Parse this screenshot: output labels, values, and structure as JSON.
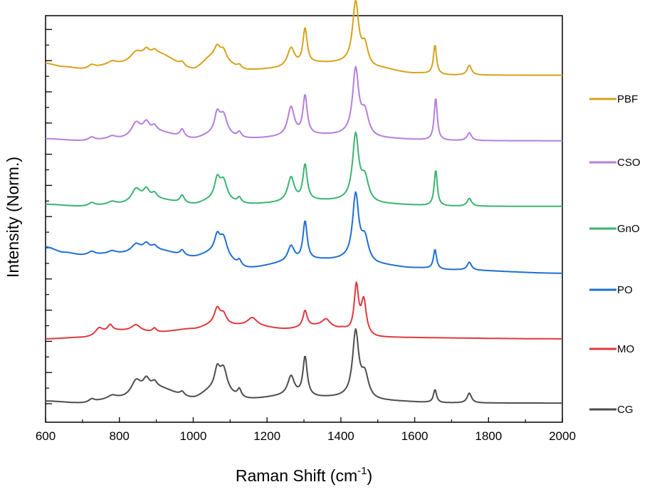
{
  "chart_data": {
    "type": "line",
    "title": "",
    "xlabel": "Raman Shift (cm",
    "xlabel_superscript": "-1",
    "xlabel_suffix": ")",
    "ylabel": "Intensity (Norm.)",
    "xlim": [
      600,
      2000
    ],
    "ylim": [
      0,
      6.2
    ],
    "x_ticks": [
      600,
      800,
      1000,
      1200,
      1400,
      1600,
      1800,
      2000
    ],
    "x_tick_labels": [
      "600",
      "800",
      "1000",
      "1200",
      "1400",
      "1600",
      "1800",
      "2000"
    ],
    "y_tick_labels_shown": false,
    "legend_position": "right",
    "series": [
      {
        "name": "PBF",
        "color": "#D6A21C",
        "offset": 5.0,
        "baseline": [
          [
            600,
            0.2
          ],
          [
            650,
            0.15
          ],
          [
            700,
            0.12
          ],
          [
            800,
            0.2
          ],
          [
            900,
            0.35
          ],
          [
            1000,
            0.12
          ],
          [
            1050,
            0.28
          ],
          [
            1150,
            0.1
          ],
          [
            1250,
            0.12
          ],
          [
            1350,
            0.2
          ],
          [
            1400,
            0.2
          ],
          [
            1500,
            0.12
          ],
          [
            1600,
            0.05
          ],
          [
            1700,
            0.02
          ],
          [
            2000,
            0.02
          ]
        ],
        "peaks": [
          [
            725,
            0.05,
            10
          ],
          [
            780,
            0.04,
            12
          ],
          [
            845,
            0.12,
            18
          ],
          [
            873,
            0.08,
            8
          ],
          [
            895,
            0.05,
            8
          ],
          [
            970,
            0.06,
            7
          ],
          [
            1065,
            0.18,
            10
          ],
          [
            1082,
            0.15,
            10
          ],
          [
            1125,
            0.05,
            6
          ],
          [
            1265,
            0.3,
            12
          ],
          [
            1303,
            0.55,
            7
          ],
          [
            1440,
            0.95,
            10
          ],
          [
            1465,
            0.3,
            10
          ],
          [
            1655,
            0.45,
            5
          ],
          [
            1748,
            0.15,
            7
          ]
        ]
      },
      {
        "name": "CSO",
        "color": "#B57EDC",
        "offset": 4.0,
        "baseline": [
          [
            600,
            0.05
          ],
          [
            700,
            0.02
          ],
          [
            800,
            0.05
          ],
          [
            900,
            0.15
          ],
          [
            1000,
            0.05
          ],
          [
            1050,
            0.1
          ],
          [
            1150,
            0.05
          ],
          [
            1250,
            0.07
          ],
          [
            1350,
            0.1
          ],
          [
            1400,
            0.1
          ],
          [
            1500,
            0.05
          ],
          [
            1700,
            0.02
          ],
          [
            2000,
            0.02
          ]
        ],
        "peaks": [
          [
            725,
            0.05,
            10
          ],
          [
            780,
            0.04,
            12
          ],
          [
            845,
            0.2,
            15
          ],
          [
            873,
            0.15,
            10
          ],
          [
            895,
            0.08,
            8
          ],
          [
            970,
            0.12,
            7
          ],
          [
            1065,
            0.3,
            9
          ],
          [
            1082,
            0.3,
            12
          ],
          [
            1125,
            0.08,
            6
          ],
          [
            1265,
            0.45,
            11
          ],
          [
            1303,
            0.6,
            7
          ],
          [
            1440,
            1.0,
            10
          ],
          [
            1465,
            0.35,
            12
          ],
          [
            1657,
            0.65,
            5
          ],
          [
            1748,
            0.12,
            7
          ]
        ]
      },
      {
        "name": "GnO",
        "color": "#3CB371",
        "offset": 3.0,
        "baseline": [
          [
            600,
            0.05
          ],
          [
            700,
            0.02
          ],
          [
            800,
            0.05
          ],
          [
            900,
            0.12
          ],
          [
            1000,
            0.05
          ],
          [
            1050,
            0.1
          ],
          [
            1150,
            0.05
          ],
          [
            1250,
            0.07
          ],
          [
            1350,
            0.1
          ],
          [
            1400,
            0.1
          ],
          [
            1500,
            0.05
          ],
          [
            1700,
            0.02
          ],
          [
            2000,
            0.02
          ]
        ],
        "peaks": [
          [
            725,
            0.05,
            10
          ],
          [
            780,
            0.04,
            12
          ],
          [
            845,
            0.2,
            15
          ],
          [
            873,
            0.15,
            10
          ],
          [
            895,
            0.08,
            8
          ],
          [
            970,
            0.12,
            7
          ],
          [
            1065,
            0.3,
            9
          ],
          [
            1082,
            0.3,
            12
          ],
          [
            1125,
            0.08,
            6
          ],
          [
            1265,
            0.38,
            11
          ],
          [
            1303,
            0.55,
            7
          ],
          [
            1440,
            1.0,
            10
          ],
          [
            1465,
            0.35,
            12
          ],
          [
            1657,
            0.55,
            5
          ],
          [
            1748,
            0.12,
            7
          ]
        ]
      },
      {
        "name": "PO",
        "color": "#1F6FD1",
        "offset": 2.0,
        "baseline": [
          [
            600,
            0.4
          ],
          [
            650,
            0.32
          ],
          [
            700,
            0.28
          ],
          [
            800,
            0.3
          ],
          [
            900,
            0.35
          ],
          [
            1000,
            0.25
          ],
          [
            1050,
            0.3
          ],
          [
            1150,
            0.08
          ],
          [
            1250,
            0.15
          ],
          [
            1350,
            0.2
          ],
          [
            1400,
            0.2
          ],
          [
            1500,
            0.12
          ],
          [
            1600,
            0.08
          ],
          [
            1700,
            0.05
          ],
          [
            2000,
            0.0
          ]
        ],
        "peaks": [
          [
            725,
            0.05,
            10
          ],
          [
            780,
            0.04,
            12
          ],
          [
            845,
            0.12,
            15
          ],
          [
            873,
            0.1,
            10
          ],
          [
            895,
            0.06,
            8
          ],
          [
            970,
            0.08,
            7
          ],
          [
            1065,
            0.25,
            9
          ],
          [
            1082,
            0.28,
            12
          ],
          [
            1125,
            0.08,
            6
          ],
          [
            1265,
            0.25,
            11
          ],
          [
            1303,
            0.6,
            7
          ],
          [
            1440,
            1.0,
            10
          ],
          [
            1465,
            0.35,
            12
          ],
          [
            1655,
            0.3,
            5
          ],
          [
            1748,
            0.12,
            7
          ]
        ]
      },
      {
        "name": "MO",
        "color": "#E0383E",
        "offset": 1.0,
        "baseline": [
          [
            600,
            0.0
          ],
          [
            700,
            0.02
          ],
          [
            800,
            0.12
          ],
          [
            900,
            0.1
          ],
          [
            1000,
            0.15
          ],
          [
            1050,
            0.2
          ],
          [
            1150,
            0.2
          ],
          [
            1250,
            0.15
          ],
          [
            1350,
            0.2
          ],
          [
            1400,
            0.15
          ],
          [
            1430,
            0.1
          ],
          [
            1500,
            0.02
          ],
          [
            2000,
            0.0
          ]
        ],
        "peaks": [
          [
            745,
            0.1,
            12
          ],
          [
            775,
            0.1,
            8
          ],
          [
            845,
            0.1,
            15
          ],
          [
            895,
            0.06,
            6
          ],
          [
            1065,
            0.25,
            10
          ],
          [
            1082,
            0.15,
            10
          ],
          [
            1160,
            0.12,
            15
          ],
          [
            1303,
            0.25,
            7
          ],
          [
            1360,
            0.1,
            12
          ],
          [
            1442,
            0.7,
            7
          ],
          [
            1462,
            0.5,
            8
          ]
        ]
      },
      {
        "name": "CG",
        "color": "#4D4D4D",
        "offset": 0.0,
        "baseline": [
          [
            600,
            0.05
          ],
          [
            700,
            0.02
          ],
          [
            800,
            0.1
          ],
          [
            900,
            0.25
          ],
          [
            1000,
            0.1
          ],
          [
            1050,
            0.2
          ],
          [
            1150,
            0.08
          ],
          [
            1250,
            0.12
          ],
          [
            1350,
            0.1
          ],
          [
            1400,
            0.1
          ],
          [
            1500,
            0.05
          ],
          [
            1700,
            0.02
          ],
          [
            2000,
            0.02
          ]
        ],
        "peaks": [
          [
            725,
            0.05,
            10
          ],
          [
            780,
            0.04,
            12
          ],
          [
            845,
            0.2,
            15
          ],
          [
            873,
            0.15,
            10
          ],
          [
            895,
            0.08,
            8
          ],
          [
            970,
            0.06,
            7
          ],
          [
            1065,
            0.3,
            9
          ],
          [
            1082,
            0.35,
            12
          ],
          [
            1125,
            0.12,
            6
          ],
          [
            1265,
            0.3,
            11
          ],
          [
            1303,
            0.6,
            7
          ],
          [
            1440,
            1.0,
            10
          ],
          [
            1465,
            0.35,
            12
          ],
          [
            1655,
            0.2,
            5
          ],
          [
            1748,
            0.15,
            7
          ]
        ]
      }
    ]
  }
}
